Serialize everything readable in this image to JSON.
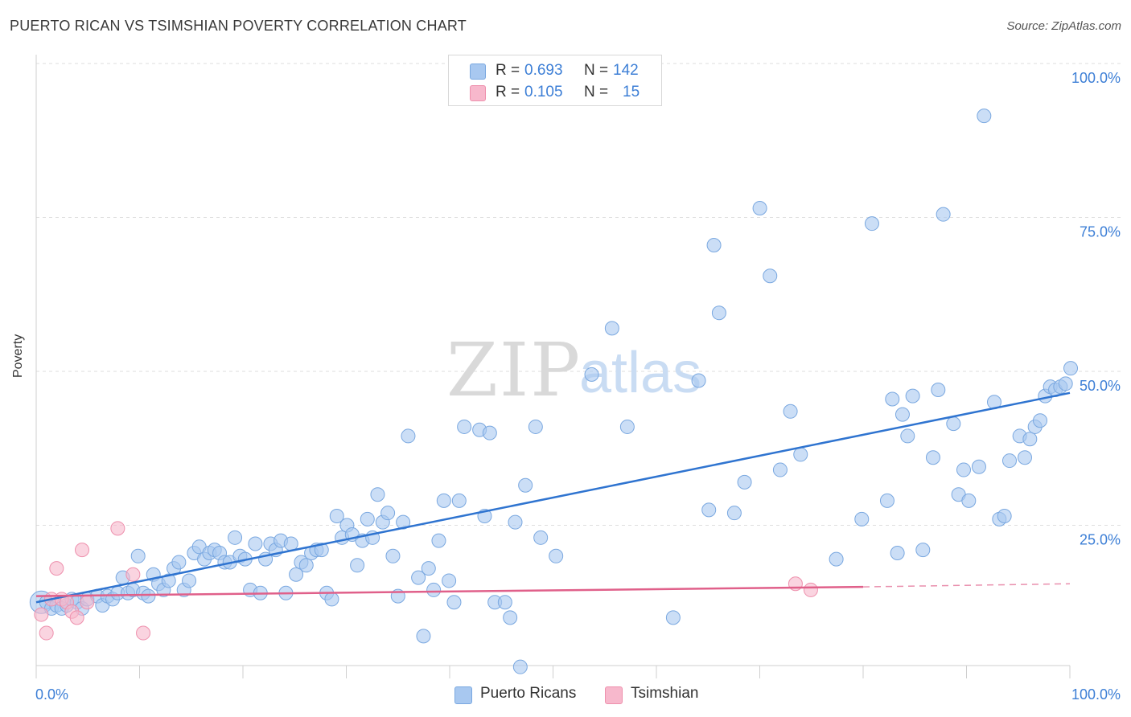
{
  "header": {
    "title": "PUERTO RICAN VS TSIMSHIAN POVERTY CORRELATION CHART",
    "source": "Source: ZipAtlas.com"
  },
  "watermark": {
    "zip": "ZIP",
    "atlas": "atlas"
  },
  "legend": {
    "rows": [
      {
        "r_label": "R =",
        "r_value": "0.693",
        "n_label": "N =",
        "n_value": "142",
        "color": "#a8c8f0"
      },
      {
        "r_label": "R =",
        "r_value": "0.105",
        "n_label": "N =",
        "n_value": "15",
        "color": "#f7b8cc"
      }
    ]
  },
  "bottom_legend": [
    {
      "label": "Puerto Ricans",
      "color": "#a8c8f0"
    },
    {
      "label": "Tsimshian",
      "color": "#f7b8cc"
    }
  ],
  "colors": {
    "blue_fill": "#a8c8f0",
    "blue_stroke": "#7aa8e0",
    "blue_line": "#2f74d0",
    "pink_fill": "#f7b8cc",
    "pink_stroke": "#ee90ad",
    "pink_line": "#e0608a",
    "tick_text": "#3d7fd6"
  },
  "chart_data": {
    "type": "scatter",
    "ylabel": "Poverty",
    "x_tick_labels": [
      "0.0%",
      "100.0%"
    ],
    "y_tick_labels": [
      "25.0%",
      "50.0%",
      "75.0%",
      "100.0%"
    ],
    "xlim": [
      0,
      100
    ],
    "ylim": [
      0,
      100
    ],
    "grid": true,
    "series": [
      {
        "name": "Puerto Ricans",
        "trend": {
          "x0": 0,
          "y0": 12.5,
          "x1": 100,
          "y1": 46.5
        },
        "points": [
          [
            0.5,
            12.5
          ],
          [
            1.0,
            12.5
          ],
          [
            1.5,
            11.5
          ],
          [
            2.0,
            12.0
          ],
          [
            2.5,
            11.5
          ],
          [
            3.0,
            12.0
          ],
          [
            3.5,
            13.0
          ],
          [
            4.0,
            12.5
          ],
          [
            4.5,
            11.5
          ],
          [
            5.0,
            13.0
          ],
          [
            6.0,
            13.5
          ],
          [
            6.5,
            12.0
          ],
          [
            7.0,
            13.5
          ],
          [
            7.5,
            13.0
          ],
          [
            8.0,
            14.0
          ],
          [
            8.5,
            16.5
          ],
          [
            9.0,
            14.0
          ],
          [
            9.5,
            14.5
          ],
          [
            10.0,
            20.0
          ],
          [
            10.5,
            14.0
          ],
          [
            11.0,
            13.5
          ],
          [
            11.5,
            17.0
          ],
          [
            12.0,
            15.5
          ],
          [
            12.5,
            14.5
          ],
          [
            13.0,
            16.0
          ],
          [
            13.5,
            18.0
          ],
          [
            14.0,
            19.0
          ],
          [
            14.5,
            14.5
          ],
          [
            15.0,
            16.0
          ],
          [
            15.5,
            20.5
          ],
          [
            16.0,
            21.5
          ],
          [
            16.5,
            19.5
          ],
          [
            17.0,
            20.5
          ],
          [
            17.5,
            21.0
          ],
          [
            18.0,
            20.5
          ],
          [
            18.5,
            19.0
          ],
          [
            19.0,
            19.0
          ],
          [
            19.5,
            23.0
          ],
          [
            20.0,
            20.0
          ],
          [
            20.5,
            19.5
          ],
          [
            21.0,
            14.5
          ],
          [
            21.5,
            22.0
          ],
          [
            22.0,
            14.0
          ],
          [
            22.5,
            19.5
          ],
          [
            23.0,
            22.0
          ],
          [
            23.5,
            21.0
          ],
          [
            24.0,
            22.5
          ],
          [
            24.5,
            14.0
          ],
          [
            25.0,
            22.0
          ],
          [
            25.5,
            17.0
          ],
          [
            26.0,
            19.0
          ],
          [
            26.5,
            18.5
          ],
          [
            27.0,
            20.5
          ],
          [
            27.5,
            21.0
          ],
          [
            28.0,
            21.0
          ],
          [
            28.5,
            14.0
          ],
          [
            29.0,
            13.0
          ],
          [
            29.5,
            26.5
          ],
          [
            30.0,
            23.0
          ],
          [
            30.5,
            25.0
          ],
          [
            31.0,
            23.5
          ],
          [
            31.5,
            18.5
          ],
          [
            32.0,
            22.5
          ],
          [
            32.5,
            26.0
          ],
          [
            33.0,
            23.0
          ],
          [
            33.5,
            30.0
          ],
          [
            34.0,
            25.5
          ],
          [
            34.5,
            27.0
          ],
          [
            35.0,
            20.0
          ],
          [
            35.5,
            13.5
          ],
          [
            36.0,
            25.5
          ],
          [
            36.5,
            39.5
          ],
          [
            37.5,
            16.5
          ],
          [
            38.0,
            7.0
          ],
          [
            38.5,
            18.0
          ],
          [
            39.0,
            14.5
          ],
          [
            39.5,
            22.5
          ],
          [
            40.0,
            29.0
          ],
          [
            40.5,
            16.0
          ],
          [
            41.0,
            12.5
          ],
          [
            41.5,
            29.0
          ],
          [
            42.0,
            41.0
          ],
          [
            43.5,
            40.5
          ],
          [
            44.0,
            26.5
          ],
          [
            44.5,
            40.0
          ],
          [
            45.0,
            12.5
          ],
          [
            46.0,
            12.5
          ],
          [
            46.5,
            10.0
          ],
          [
            47.0,
            25.5
          ],
          [
            47.5,
            2.0
          ],
          [
            48.0,
            31.5
          ],
          [
            49.0,
            41.0
          ],
          [
            49.5,
            23.0
          ],
          [
            51.0,
            20.0
          ],
          [
            54.5,
            49.5
          ],
          [
            56.5,
            57.0
          ],
          [
            58.0,
            41.0
          ],
          [
            62.5,
            10.0
          ],
          [
            65.0,
            48.5
          ],
          [
            66.0,
            27.5
          ],
          [
            66.5,
            70.5
          ],
          [
            67.0,
            59.5
          ],
          [
            68.5,
            27.0
          ],
          [
            69.5,
            32.0
          ],
          [
            71.0,
            76.5
          ],
          [
            72.0,
            65.5
          ],
          [
            73.0,
            34.0
          ],
          [
            74.0,
            43.5
          ],
          [
            75.0,
            36.5
          ],
          [
            78.5,
            19.5
          ],
          [
            81.0,
            26.0
          ],
          [
            82.0,
            74.0
          ],
          [
            83.5,
            29.0
          ],
          [
            84.0,
            45.5
          ],
          [
            84.5,
            20.5
          ],
          [
            85.0,
            43.0
          ],
          [
            85.5,
            39.5
          ],
          [
            86.0,
            46.0
          ],
          [
            87.0,
            21.0
          ],
          [
            88.0,
            36.0
          ],
          [
            88.5,
            47.0
          ],
          [
            89.0,
            75.5
          ],
          [
            90.0,
            41.5
          ],
          [
            90.5,
            30.0
          ],
          [
            91.0,
            34.0
          ],
          [
            91.5,
            29.0
          ],
          [
            92.5,
            34.5
          ],
          [
            93.0,
            91.5
          ],
          [
            94.0,
            45.0
          ],
          [
            94.5,
            26.0
          ],
          [
            95.0,
            26.5
          ],
          [
            95.5,
            35.5
          ],
          [
            96.5,
            39.5
          ],
          [
            97.0,
            36.0
          ],
          [
            97.5,
            39.0
          ],
          [
            98.0,
            41.0
          ],
          [
            98.5,
            42.0
          ],
          [
            99.0,
            46.0
          ],
          [
            99.5,
            47.5
          ],
          [
            100.0,
            47.0
          ],
          [
            100.5,
            47.5
          ],
          [
            101.0,
            48.0
          ],
          [
            101.5,
            50.5
          ]
        ]
      },
      {
        "name": "Tsimshian",
        "trend": {
          "x0": 0,
          "y0": 13.5,
          "x1": 80,
          "y1": 15.0
        },
        "trend_dashed": {
          "x0": 80,
          "y0": 15.0,
          "x1": 100,
          "y1": 15.5
        },
        "points": [
          [
            0.5,
            10.5
          ],
          [
            1.0,
            7.5
          ],
          [
            1.5,
            13.0
          ],
          [
            2.0,
            18.0
          ],
          [
            2.5,
            13.0
          ],
          [
            3.0,
            12.5
          ],
          [
            3.5,
            11.0
          ],
          [
            4.0,
            10.0
          ],
          [
            4.5,
            21.0
          ],
          [
            5.0,
            12.5
          ],
          [
            8.0,
            24.5
          ],
          [
            9.5,
            17.0
          ],
          [
            10.5,
            7.5
          ],
          [
            74.5,
            15.5
          ],
          [
            76.0,
            14.5
          ]
        ]
      }
    ]
  }
}
